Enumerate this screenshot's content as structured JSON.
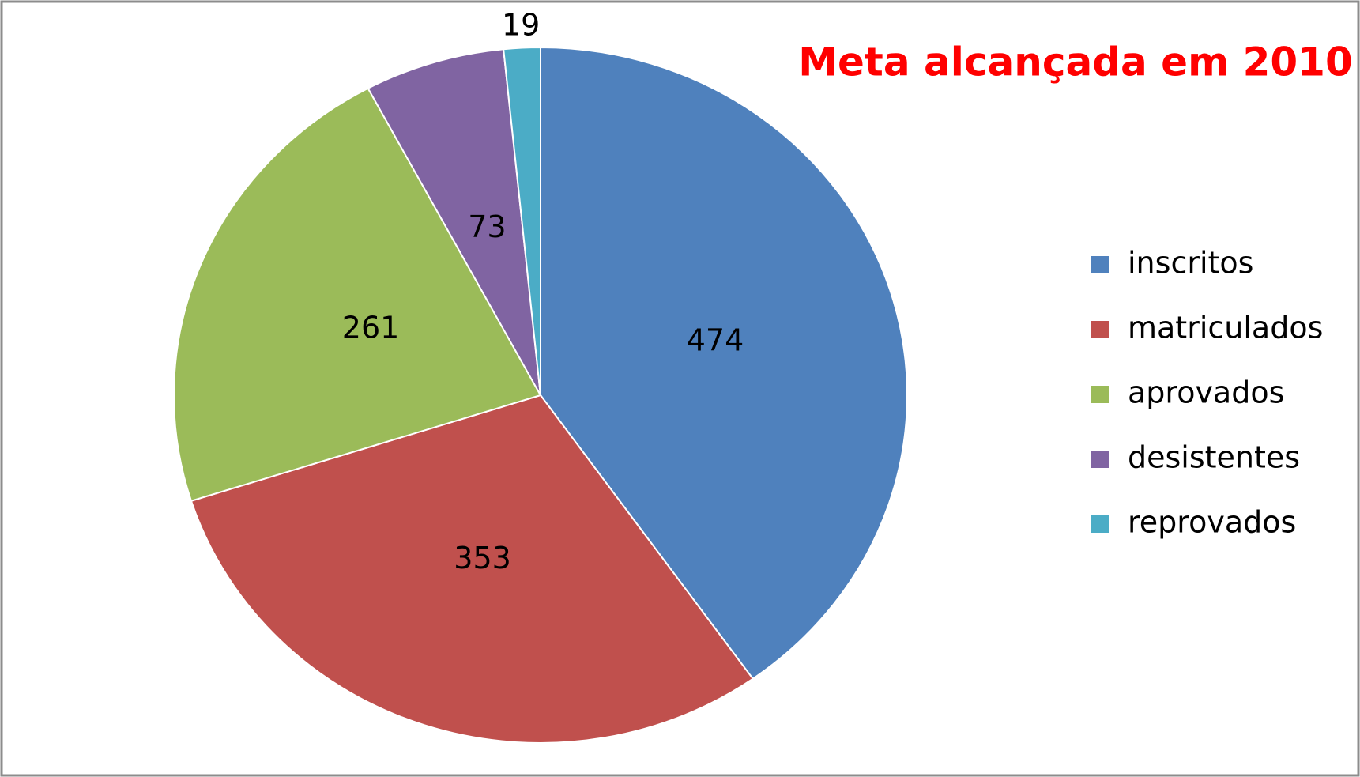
{
  "chart_data": {
    "type": "pie",
    "title": "Meta alcançada em 2010",
    "categories": [
      "inscritos",
      "matriculados",
      "aprovados",
      "desistentes",
      "reprovados"
    ],
    "values": [
      474,
      353,
      261,
      73,
      19
    ],
    "colors": [
      "#4f81bd",
      "#c0504d",
      "#9bbb59",
      "#8064a2",
      "#4bacc6"
    ],
    "legend": "right"
  }
}
